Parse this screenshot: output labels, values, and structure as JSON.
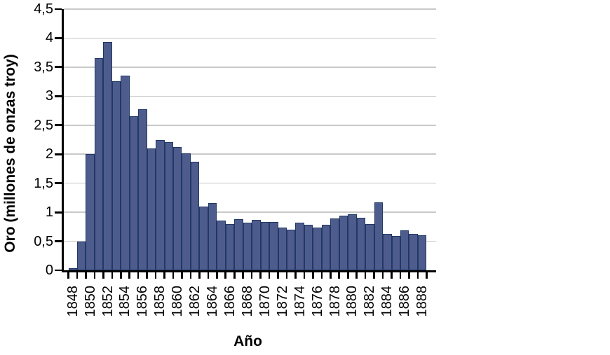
{
  "chart_data": {
    "type": "bar",
    "xlabel": "Año",
    "ylabel": "Oro (millones de onzas troy)",
    "categories": [
      1848,
      1849,
      1850,
      1851,
      1852,
      1853,
      1854,
      1855,
      1856,
      1857,
      1858,
      1859,
      1860,
      1861,
      1862,
      1863,
      1864,
      1865,
      1866,
      1867,
      1868,
      1869,
      1870,
      1871,
      1872,
      1873,
      1874,
      1875,
      1876,
      1877,
      1878,
      1879,
      1880,
      1881,
      1882,
      1883,
      1884,
      1885,
      1886,
      1887,
      1888
    ],
    "values": [
      0.04,
      0.49,
      2.0,
      3.66,
      3.93,
      3.26,
      3.36,
      2.66,
      2.78,
      2.1,
      2.24,
      2.21,
      2.12,
      2.02,
      1.87,
      1.1,
      1.16,
      0.86,
      0.8,
      0.88,
      0.82,
      0.87,
      0.83,
      0.83,
      0.74,
      0.7,
      0.82,
      0.79,
      0.74,
      0.78,
      0.89,
      0.94,
      0.96,
      0.91,
      0.8,
      1.17,
      0.63,
      0.59,
      0.69,
      0.63,
      0.6
    ],
    "x_tick_labels": [
      "1848",
      "1850",
      "1852",
      "1854",
      "1856",
      "1858",
      "1860",
      "1862",
      "1864",
      "1866",
      "1868",
      "1870",
      "1872",
      "1874",
      "1876",
      "1878",
      "1880",
      "1882",
      "1884",
      "1886",
      "1888"
    ],
    "x_tick_label_every": 2,
    "y_tick_labels": [
      "0",
      "0,5",
      "1",
      "1,5",
      "2",
      "2,5",
      "3",
      "3,5",
      "4",
      "4,5"
    ],
    "y_tick_values": [
      0,
      0.5,
      1,
      1.5,
      2,
      2.5,
      3,
      3.5,
      4,
      4.5
    ],
    "ylim": [
      0,
      4.5
    ],
    "y_step": 0.5,
    "grid": true,
    "legend": false,
    "colors": {
      "bar_fill": "#4E5C8D",
      "bar_border": "#203864",
      "gridline": "#C9C9C9",
      "axis": "#000000",
      "text": "#000000",
      "background": "#FFFFFF"
    }
  }
}
